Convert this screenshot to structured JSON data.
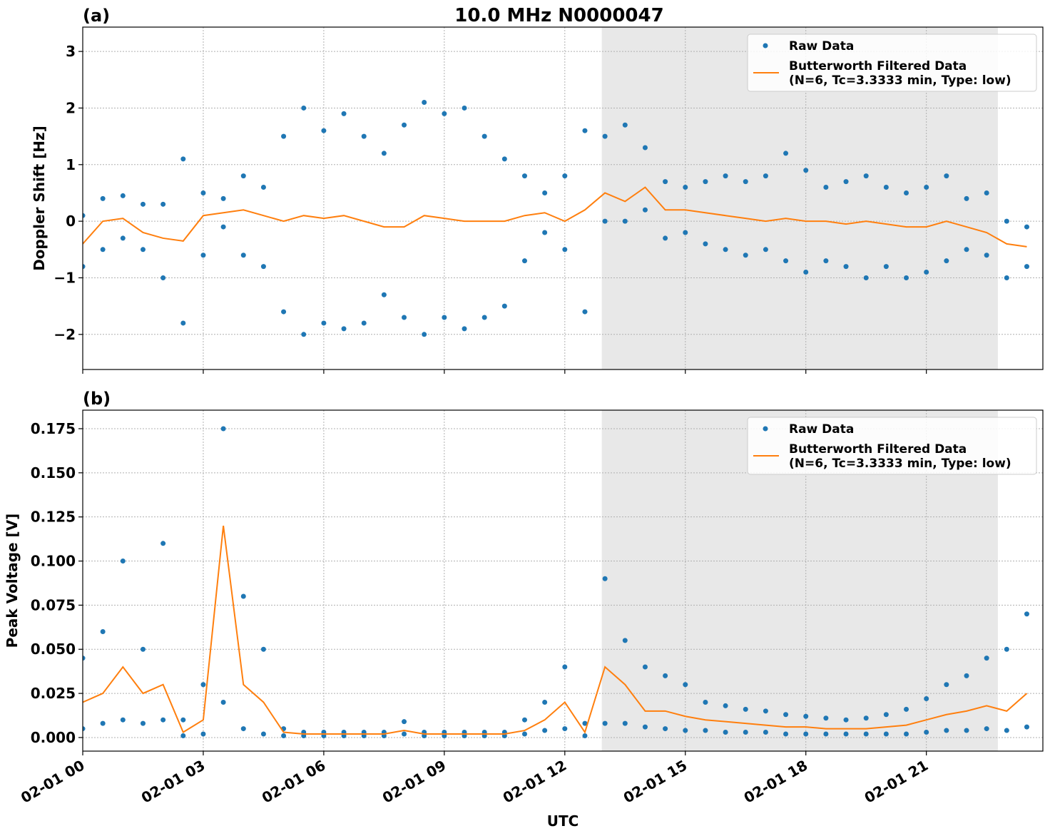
{
  "chart_data": [
    {
      "type": "scatter-line",
      "title": "10.0 MHz N0000047",
      "panel_label": "(a)",
      "ylabel": "Doppler Shift [Hz]",
      "xlim": [
        0,
        23.9
      ],
      "ylim": [
        -2.62,
        3.43
      ],
      "yticks": [
        {
          "value": -2,
          "label": "−2"
        },
        {
          "value": -1,
          "label": "−1"
        },
        0,
        1,
        2,
        3
      ],
      "grid": true,
      "legend": "upper right",
      "shaded_span": [
        12.92,
        22.78
      ],
      "shade_color": "#e8e8e8",
      "series": [
        {
          "name": "Raw Data",
          "color": "#1f77b4",
          "kind": "scatter",
          "x": [
            0,
            0.5,
            1,
            1.5,
            2,
            2.5,
            3,
            3.5,
            4,
            4.5,
            5,
            5.5,
            6,
            6.5,
            7,
            7.5,
            8,
            8.5,
            9,
            9.5,
            10,
            10.5,
            11,
            11.5,
            12,
            12.5,
            13,
            13.5,
            14,
            14.5,
            15,
            15.5,
            16,
            16.5,
            17,
            17.5,
            18,
            18.5,
            19,
            19.5,
            20,
            20.5,
            21,
            21.5,
            22,
            22.5,
            23,
            23.5,
            0,
            0.5,
            1,
            1.5,
            2,
            2.5,
            3,
            3.5,
            4,
            4.5,
            5,
            5.5,
            6,
            6.5,
            7,
            7.5,
            8,
            8.5,
            9,
            9.5,
            10,
            10.5,
            11,
            11.5,
            12,
            12.5,
            13,
            13.5,
            14,
            14.5,
            15,
            15.5,
            16,
            16.5,
            17,
            17.5,
            18,
            18.5,
            19,
            19.5,
            20,
            20.5,
            21,
            21.5,
            22,
            22.5,
            23,
            23.5
          ],
          "values": [
            0.1,
            0.4,
            0.45,
            0.3,
            0.3,
            1.1,
            0.5,
            0.4,
            0.8,
            0.6,
            1.5,
            2.0,
            1.6,
            1.9,
            1.5,
            1.2,
            1.7,
            2.1,
            1.9,
            2.0,
            1.5,
            1.1,
            0.8,
            0.5,
            0.8,
            1.6,
            1.5,
            1.7,
            1.3,
            0.7,
            0.6,
            0.7,
            0.8,
            0.7,
            0.8,
            1.2,
            0.9,
            0.6,
            0.7,
            0.8,
            0.6,
            0.5,
            0.6,
            0.8,
            0.4,
            0.5,
            0.0,
            -0.1,
            -0.8,
            -0.5,
            -0.3,
            -0.5,
            -1.0,
            -1.8,
            -0.6,
            -0.1,
            -0.6,
            -0.8,
            -1.6,
            -2.0,
            -1.8,
            -1.9,
            -1.8,
            -1.3,
            -1.7,
            -2.0,
            -1.7,
            -1.9,
            -1.7,
            -1.5,
            -0.7,
            -0.2,
            -0.5,
            -1.6,
            0.0,
            0.0,
            0.2,
            -0.3,
            -0.2,
            -0.4,
            -0.5,
            -0.6,
            -0.5,
            -0.7,
            -0.9,
            -0.7,
            -0.8,
            -1.0,
            -0.8,
            -1.0,
            -0.9,
            -0.7,
            -0.5,
            -0.6,
            -1.0,
            -0.8
          ]
        },
        {
          "name": "Butterworth Filtered Data\n(N=6, Tc=3.3333 min, Type: low)",
          "color": "#ff7f0e",
          "kind": "line",
          "x": [
            0,
            0.5,
            1,
            1.5,
            2,
            2.5,
            3,
            3.5,
            4,
            4.5,
            5,
            5.5,
            6,
            6.5,
            7,
            7.5,
            8,
            8.5,
            9,
            9.5,
            10,
            10.5,
            11,
            11.5,
            12,
            12.5,
            13,
            13.5,
            14,
            14.5,
            15,
            15.5,
            16,
            16.5,
            17,
            17.5,
            18,
            18.5,
            19,
            19.5,
            20,
            20.5,
            21,
            21.5,
            22,
            22.5,
            23,
            23.5
          ],
          "values": [
            -0.4,
            0.0,
            0.05,
            -0.2,
            -0.3,
            -0.35,
            0.1,
            0.15,
            0.2,
            0.1,
            0.0,
            0.1,
            0.05,
            0.1,
            0.0,
            -0.1,
            -0.1,
            0.1,
            0.05,
            0.0,
            0.0,
            0.0,
            0.1,
            0.15,
            0.0,
            0.2,
            0.5,
            0.35,
            0.6,
            0.2,
            0.2,
            0.15,
            0.1,
            0.05,
            0.0,
            0.05,
            0.0,
            0.0,
            -0.05,
            0.0,
            -0.05,
            -0.1,
            -0.1,
            0.0,
            -0.1,
            -0.2,
            -0.4,
            -0.45
          ]
        }
      ]
    },
    {
      "type": "scatter-line",
      "panel_label": "(b)",
      "ylabel": "Peak Voltage [V]",
      "xlabel": "UTC",
      "xlim": [
        0,
        23.9
      ],
      "ylim": [
        -0.0077,
        0.1855
      ],
      "xticks": [
        {
          "value": 0,
          "label": "02-01 00"
        },
        {
          "value": 3,
          "label": "02-01 03"
        },
        {
          "value": 6,
          "label": "02-01 06"
        },
        {
          "value": 9,
          "label": "02-01 09"
        },
        {
          "value": 12,
          "label": "02-01 12"
        },
        {
          "value": 15,
          "label": "02-01 15"
        },
        {
          "value": 18,
          "label": "02-01 18"
        },
        {
          "value": 21,
          "label": "02-01 21"
        }
      ],
      "yticks": [
        {
          "value": 0,
          "label": "0.000"
        },
        0.025,
        {
          "value": 0.05,
          "label": "0.050"
        },
        0.075,
        {
          "value": 0.1,
          "label": "0.100"
        },
        0.125,
        {
          "value": 0.15,
          "label": "0.150"
        },
        0.175
      ],
      "grid": true,
      "legend": "upper right",
      "shaded_span": [
        12.92,
        22.78
      ],
      "shade_color": "#e8e8e8",
      "series": [
        {
          "name": "Raw Data",
          "color": "#1f77b4",
          "kind": "scatter",
          "x": [
            0,
            0.5,
            1,
            1.5,
            2,
            2.5,
            3,
            3.5,
            4,
            4.5,
            5,
            5.5,
            6,
            6.5,
            7,
            7.5,
            8,
            8.5,
            9,
            9.5,
            10,
            10.5,
            11,
            11.5,
            12,
            12.5,
            13,
            13.5,
            14,
            14.5,
            15,
            15.5,
            16,
            16.5,
            17,
            17.5,
            18,
            18.5,
            19,
            19.5,
            20,
            20.5,
            21,
            21.5,
            22,
            22.5,
            23,
            23.5,
            0,
            0.5,
            1,
            1.5,
            2,
            2.5,
            3,
            3.5,
            4,
            4.5,
            5,
            5.5,
            6,
            6.5,
            7,
            7.5,
            8,
            8.5,
            9,
            9.5,
            10,
            10.5,
            11,
            11.5,
            12,
            12.5,
            13,
            13.5,
            14,
            14.5,
            15,
            15.5,
            16,
            16.5,
            17,
            17.5,
            18,
            18.5,
            19,
            19.5,
            20,
            20.5,
            21,
            21.5,
            22,
            22.5,
            23,
            23.5
          ],
          "values": [
            0.045,
            0.06,
            0.1,
            0.05,
            0.11,
            0.01,
            0.03,
            0.175,
            0.08,
            0.05,
            0.005,
            0.003,
            0.003,
            0.003,
            0.003,
            0.003,
            0.009,
            0.003,
            0.003,
            0.003,
            0.003,
            0.003,
            0.01,
            0.02,
            0.04,
            0.008,
            0.09,
            0.055,
            0.04,
            0.035,
            0.03,
            0.02,
            0.018,
            0.016,
            0.015,
            0.013,
            0.012,
            0.011,
            0.01,
            0.011,
            0.013,
            0.016,
            0.022,
            0.03,
            0.035,
            0.045,
            0.05,
            0.07,
            0.005,
            0.008,
            0.01,
            0.008,
            0.01,
            0.001,
            0.002,
            0.02,
            0.005,
            0.002,
            0.001,
            0.001,
            0.001,
            0.001,
            0.001,
            0.001,
            0.002,
            0.001,
            0.001,
            0.001,
            0.001,
            0.001,
            0.002,
            0.004,
            0.005,
            0.001,
            0.008,
            0.008,
            0.006,
            0.005,
            0.004,
            0.004,
            0.003,
            0.003,
            0.003,
            0.002,
            0.002,
            0.002,
            0.002,
            0.002,
            0.002,
            0.002,
            0.003,
            0.004,
            0.004,
            0.005,
            0.004,
            0.006
          ]
        },
        {
          "name": "Butterworth Filtered Data\n(N=6, Tc=3.3333 min, Type: low)",
          "color": "#ff7f0e",
          "kind": "line",
          "x": [
            0,
            0.5,
            1,
            1.5,
            2,
            2.5,
            3,
            3.5,
            4,
            4.5,
            5,
            5.5,
            6,
            6.5,
            7,
            7.5,
            8,
            8.5,
            9,
            9.5,
            10,
            10.5,
            11,
            11.5,
            12,
            12.5,
            13,
            13.5,
            14,
            14.5,
            15,
            15.5,
            16,
            16.5,
            17,
            17.5,
            18,
            18.5,
            19,
            19.5,
            20,
            20.5,
            21,
            21.5,
            22,
            22.5,
            23,
            23.5
          ],
          "values": [
            0.02,
            0.025,
            0.04,
            0.025,
            0.03,
            0.003,
            0.01,
            0.12,
            0.03,
            0.02,
            0.003,
            0.002,
            0.002,
            0.002,
            0.002,
            0.002,
            0.004,
            0.002,
            0.002,
            0.002,
            0.002,
            0.002,
            0.004,
            0.01,
            0.02,
            0.003,
            0.04,
            0.03,
            0.015,
            0.015,
            0.012,
            0.01,
            0.009,
            0.008,
            0.007,
            0.006,
            0.006,
            0.005,
            0.005,
            0.005,
            0.006,
            0.007,
            0.01,
            0.013,
            0.015,
            0.018,
            0.015,
            0.025
          ]
        }
      ]
    }
  ]
}
